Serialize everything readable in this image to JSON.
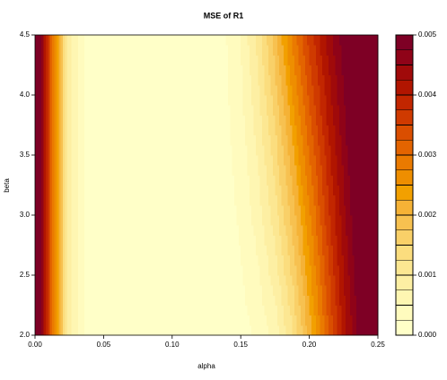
{
  "chart_data": {
    "type": "contour",
    "title": "MSE of R1",
    "xlabel": "alpha",
    "ylabel": "beta",
    "x": [
      0,
      0.0125,
      0.025,
      0.0375,
      0.05,
      0.0625,
      0.075,
      0.0875,
      0.1,
      0.1125,
      0.125,
      0.1375,
      0.15,
      0.1625,
      0.175,
      0.1875,
      0.2,
      0.2125,
      0.225,
      0.2375,
      0.25
    ],
    "y": [
      2.0,
      2.5,
      3.0,
      3.5,
      4.0,
      4.5
    ],
    "z": [
      [
        0.0058,
        0.003,
        0.0008,
        0.0002,
        0.0001,
        5e-05,
        3e-05,
        3e-05,
        4e-05,
        5e-05,
        6e-05,
        8e-05,
        0.00015,
        0.0003,
        0.0006,
        0.0012,
        0.0021,
        0.0031,
        0.0041,
        0.0049,
        0.0055
      ],
      [
        0.0058,
        0.003,
        0.0008,
        0.0002,
        0.0001,
        5e-05,
        3e-05,
        3e-05,
        4e-05,
        5e-05,
        6e-05,
        0.0001,
        0.00022,
        0.00046,
        0.00086,
        0.00152,
        0.0024,
        0.00334,
        0.00426,
        0.00504,
        0.00564
      ],
      [
        0.0058,
        0.003,
        0.0008,
        0.0002,
        0.0001,
        5e-05,
        3e-05,
        3e-05,
        4e-05,
        5e-05,
        6e-05,
        0.00013,
        0.00029,
        0.00062,
        0.00112,
        0.00184,
        0.0027,
        0.00358,
        0.00442,
        0.00518,
        0.00578
      ],
      [
        0.0058,
        0.003,
        0.0008,
        0.0002,
        0.0001,
        5e-05,
        3e-05,
        3e-05,
        4e-05,
        5e-05,
        6e-05,
        0.00015,
        0.00036,
        0.00078,
        0.00138,
        0.00216,
        0.003,
        0.00382,
        0.00458,
        0.00532,
        0.00592
      ],
      [
        0.0058,
        0.003,
        0.0008,
        0.0002,
        0.0001,
        5e-05,
        3e-05,
        3e-05,
        4e-05,
        5e-05,
        6e-05,
        0.00018,
        0.00043,
        0.00094,
        0.00164,
        0.00248,
        0.0033,
        0.00406,
        0.00474,
        0.00546,
        0.00606
      ],
      [
        0.0058,
        0.003,
        0.0008,
        0.0002,
        0.0001,
        5e-05,
        3e-05,
        3e-05,
        4e-05,
        5e-05,
        6e-05,
        0.0002,
        0.0005,
        0.0011,
        0.0019,
        0.0028,
        0.0036,
        0.0043,
        0.0049,
        0.0056,
        0.0062
      ]
    ],
    "levels": [
      0,
      0.00025,
      0.0005,
      0.00075,
      0.001,
      0.00125,
      0.0015,
      0.00175,
      0.002,
      0.00225,
      0.0025,
      0.00275,
      0.003,
      0.00325,
      0.0035,
      0.00375,
      0.004,
      0.00425,
      0.0045,
      0.00475,
      0.005
    ],
    "colors": [
      "#FFFFC8",
      "#FFFBBE",
      "#FEF6B2",
      "#FDEFA3",
      "#FCE792",
      "#FBDD7E",
      "#F9D068",
      "#F7C150",
      "#F5B236",
      "#F2A000",
      "#EE8E00",
      "#EA7A00",
      "#E36400",
      "#DA4E00",
      "#CF3A00",
      "#C22600",
      "#B11500",
      "#A00A0A",
      "#8F0318",
      "#7E0025"
    ],
    "xlim": [
      0,
      0.25
    ],
    "ylim": [
      2.0,
      4.5
    ],
    "zlim": [
      0,
      0.005
    ],
    "xticks": [
      {
        "value": 0,
        "label": "0.00"
      },
      {
        "value": 0.05,
        "label": "0.05"
      },
      {
        "value": 0.1,
        "label": "0.10"
      },
      {
        "value": 0.15,
        "label": "0.15"
      },
      {
        "value": 0.2,
        "label": "0.20"
      },
      {
        "value": 0.25,
        "label": "0.25"
      }
    ],
    "yticks": [
      {
        "value": 2,
        "label": "2.0"
      },
      2.5,
      {
        "value": 3,
        "label": "3.0"
      },
      3.5,
      {
        "value": 4,
        "label": "4.0"
      },
      4.5
    ],
    "zticks": [
      {
        "value": 0,
        "label": "0.000"
      },
      {
        "value": 0.001,
        "label": "0.001"
      },
      {
        "value": 0.002,
        "label": "0.002"
      },
      {
        "value": 0.003,
        "label": "0.003"
      },
      {
        "value": 0.004,
        "label": "0.004"
      },
      {
        "value": 0.005,
        "label": "0.005"
      }
    ]
  }
}
